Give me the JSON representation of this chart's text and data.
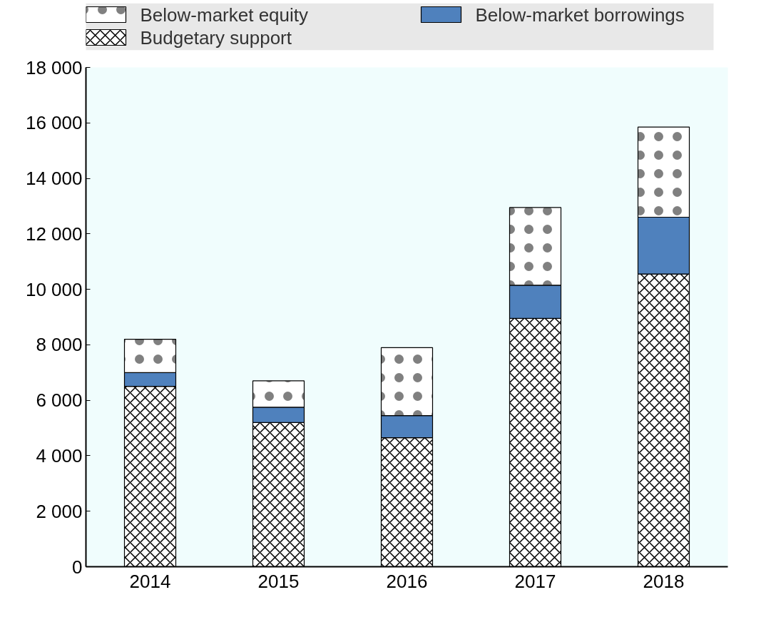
{
  "chart_data": {
    "type": "bar",
    "stacked": true,
    "categories": [
      "2014",
      "2015",
      "2016",
      "2017",
      "2018"
    ],
    "series": [
      {
        "name": "Budgetary support",
        "color": "#ffffff",
        "values": [
          6500,
          5200,
          4650,
          8950,
          10550
        ]
      },
      {
        "name": "Below-market borrowings",
        "color": "#4f81bd",
        "values": [
          500,
          550,
          800,
          1200,
          2050
        ]
      },
      {
        "name": "Below-market equity",
        "color": "#ffffff",
        "values": [
          1200,
          950,
          2450,
          2800,
          3250
        ]
      }
    ],
    "ylim": [
      0,
      18000
    ],
    "yticks": [
      0,
      {
        "value": 2000,
        "label": "2 000"
      },
      {
        "value": 4000,
        "label": "4 000"
      },
      {
        "value": 6000,
        "label": "6 000"
      },
      {
        "value": 8000,
        "label": "8 000"
      },
      {
        "value": 10000,
        "label": "10 000"
      },
      {
        "value": 12000,
        "label": "12 000"
      },
      {
        "value": 14000,
        "label": "14 000"
      },
      {
        "value": 16000,
        "label": "16 000"
      },
      {
        "value": 18000,
        "label": "18 000"
      }
    ],
    "grid": false,
    "legend": "top"
  }
}
